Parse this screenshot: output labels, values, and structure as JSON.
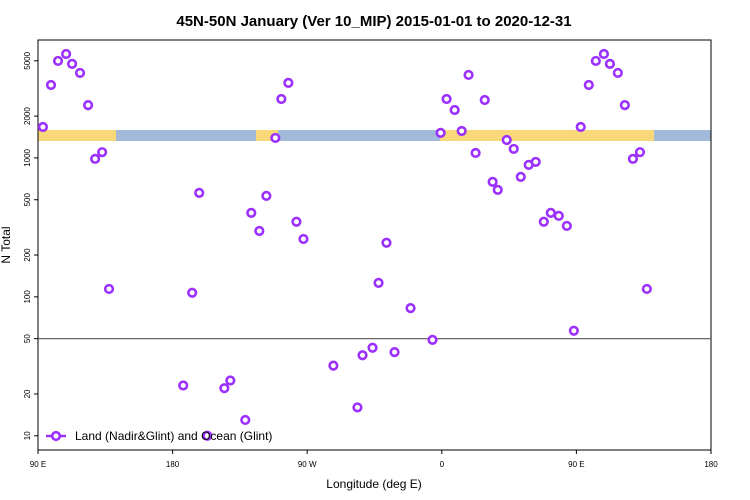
{
  "chart_data": {
    "type": "scatter",
    "title": "45N-50N January (Ver 10_MIP)   2015-01-01 to 2020-12-31",
    "x_label": "Longitude (deg E)",
    "y_label": "N Total",
    "log_y": true,
    "color": "#9b30ff",
    "hline": 50,
    "xlim": [
      90,
      540
    ],
    "ylim": [
      7.9,
      7060
    ],
    "xticks": [
      {
        "value": 90,
        "label": "90 E"
      },
      {
        "value": 180,
        "label": "180"
      },
      {
        "value": 270,
        "label": "90 W"
      },
      {
        "value": 360,
        "label": "0"
      },
      {
        "value": 450,
        "label": "90 E"
      },
      {
        "value": 540,
        "label": "180"
      }
    ],
    "yticks": [
      10,
      20,
      50,
      100,
      200,
      500,
      1000,
      2000,
      5000
    ],
    "legend": "bottom-left",
    "series": [
      {
        "name": "Land (Nadir&Glint) and Ocean (Glint)",
        "color": "#9b30ff",
        "x": [
          93.3,
          98.7,
          103.4,
          108.8,
          112.8,
          118.1,
          123.5,
          128.2,
          132.9,
          137.5,
          187.1,
          193.1,
          197.8,
          203.2,
          214.6,
          218.6,
          228.6,
          232.6,
          238.0,
          242.7,
          248.7,
          252.7,
          257.4,
          262.8,
          267.5,
          287.5,
          303.6,
          307.0,
          313.7,
          317.7,
          323.0,
          328.4,
          339.1,
          353.8,
          359.2,
          363.2,
          368.6,
          373.3,
          377.9,
          382.6,
          388.7,
          394.0,
          397.4,
          403.4,
          408.1,
          412.8,
          418.1,
          422.8,
          428.2,
          432.9,
          438.2,
          443.6,
          448.3,
          452.9,
          458.3,
          463.0,
          468.4,
          472.4,
          477.7,
          482.4,
          487.8,
          492.5,
          497.1
        ],
        "values": [
          1670,
          3350,
          4990,
          5600,
          4750,
          4090,
          2400,
          985,
          1100,
          114,
          23,
          107,
          560,
          10,
          22,
          25,
          13,
          402,
          298,
          533,
          1393,
          2655,
          3470,
          347,
          261,
          32,
          16,
          38,
          43,
          126,
          245,
          40,
          83,
          49,
          1514,
          2655,
          2213,
          1563,
          3956,
          1086,
          2611,
          672,
          589,
          1346,
          1161,
          730,
          891,
          936,
          347,
          402,
          383,
          324,
          57,
          1670,
          3350,
          4990,
          5600,
          4750,
          4090,
          2400,
          985,
          1100,
          114
        ]
      }
    ]
  }
}
